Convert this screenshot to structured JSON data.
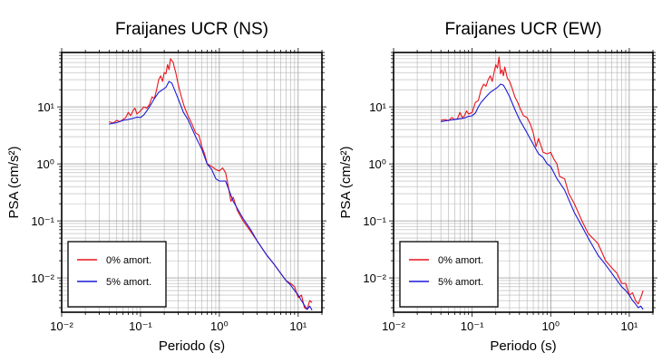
{
  "chart_data": [
    {
      "type": "line",
      "title": "Fraijanes UCR (NS)",
      "xlabel": "Periodo (s)",
      "ylabel": "PSA (cm/s²)",
      "xscale": "log",
      "yscale": "log",
      "xlim": [
        0.01,
        20
      ],
      "ylim": [
        0.0025,
        90
      ],
      "x_ticks": [
        "10⁻²",
        "10⁻¹",
        "10⁰",
        "10¹"
      ],
      "y_ticks": [
        "10⁻²",
        "10⁻¹",
        "10⁰",
        "10¹"
      ],
      "grid": true,
      "legend": "bottom-left",
      "series": [
        {
          "name": "0% amort.",
          "color": "#e8141c",
          "x": [
            0.04,
            0.045,
            0.05,
            0.055,
            0.06,
            0.065,
            0.07,
            0.075,
            0.08,
            0.085,
            0.09,
            0.1,
            0.11,
            0.12,
            0.13,
            0.14,
            0.15,
            0.16,
            0.17,
            0.18,
            0.19,
            0.2,
            0.21,
            0.22,
            0.23,
            0.24,
            0.25,
            0.26,
            0.27,
            0.28,
            0.3,
            0.33,
            0.36,
            0.4,
            0.45,
            0.5,
            0.55,
            0.6,
            0.65,
            0.7,
            0.8,
            0.9,
            1.0,
            1.1,
            1.2,
            1.3,
            1.4,
            1.5,
            1.7,
            2.0,
            2.5,
            3.0,
            4.0,
            5.0,
            6.0,
            7.0,
            8.0,
            9.0,
            10,
            11,
            12,
            13,
            14,
            15
          ],
          "y": [
            5.5,
            5.2,
            5.8,
            5.5,
            6.0,
            6.5,
            8.0,
            7.0,
            8.5,
            9.5,
            7.5,
            8.5,
            10,
            9.5,
            11,
            15,
            14,
            20,
            30,
            35,
            28,
            40,
            38,
            55,
            45,
            70,
            65,
            60,
            48,
            40,
            25,
            15,
            10,
            7,
            5,
            3.5,
            3.2,
            2.0,
            1.5,
            1.0,
            0.9,
            0.8,
            0.75,
            0.85,
            0.7,
            0.4,
            0.22,
            0.26,
            0.15,
            0.1,
            0.065,
            0.045,
            0.025,
            0.017,
            0.012,
            0.009,
            0.008,
            0.007,
            0.0045,
            0.005,
            0.003,
            0.0028,
            0.004,
            0.0037
          ]
        },
        {
          "name": "5% amort.",
          "color": "#1a1ad8",
          "x": [
            0.04,
            0.05,
            0.06,
            0.07,
            0.08,
            0.09,
            0.1,
            0.11,
            0.12,
            0.13,
            0.15,
            0.17,
            0.19,
            0.21,
            0.23,
            0.25,
            0.27,
            0.3,
            0.35,
            0.4,
            0.5,
            0.6,
            0.7,
            0.8,
            0.9,
            1.0,
            1.2,
            1.5,
            2.0,
            2.5,
            3.0,
            4.0,
            5.0,
            6.0,
            7.0,
            8.0,
            9.0,
            10,
            11,
            12,
            13,
            14,
            15
          ],
          "y": [
            5.0,
            5.3,
            5.8,
            6.0,
            6.3,
            6.6,
            6.5,
            7.2,
            8.5,
            10,
            14,
            18,
            20,
            22,
            28,
            26,
            20,
            14,
            8,
            6,
            3,
            1.8,
            1.0,
            0.8,
            0.55,
            0.5,
            0.5,
            0.22,
            0.11,
            0.07,
            0.045,
            0.025,
            0.017,
            0.012,
            0.009,
            0.0075,
            0.006,
            0.005,
            0.004,
            0.0033,
            0.0028,
            0.0032,
            0.0027
          ]
        }
      ]
    },
    {
      "type": "line",
      "title": "Fraijanes UCR (EW)",
      "xlabel": "Periodo (s)",
      "ylabel": "PSA (cm/s²)",
      "xscale": "log",
      "yscale": "log",
      "xlim": [
        0.01,
        20
      ],
      "ylim": [
        0.0025,
        90
      ],
      "x_ticks": [
        "10⁻²",
        "10⁻¹",
        "10⁰",
        "10¹"
      ],
      "y_ticks": [
        "10⁻²",
        "10⁻¹",
        "10⁰",
        "10¹"
      ],
      "grid": true,
      "legend": "bottom-left",
      "series": [
        {
          "name": "0% amort.",
          "color": "#e8141c",
          "x": [
            0.04,
            0.045,
            0.05,
            0.055,
            0.06,
            0.065,
            0.07,
            0.075,
            0.08,
            0.085,
            0.09,
            0.1,
            0.11,
            0.12,
            0.13,
            0.14,
            0.15,
            0.16,
            0.17,
            0.18,
            0.19,
            0.2,
            0.21,
            0.22,
            0.23,
            0.24,
            0.25,
            0.26,
            0.27,
            0.28,
            0.3,
            0.32,
            0.35,
            0.38,
            0.4,
            0.45,
            0.5,
            0.55,
            0.6,
            0.65,
            0.7,
            0.8,
            0.9,
            1.0,
            1.1,
            1.2,
            1.3,
            1.5,
            1.7,
            2.0,
            2.5,
            3.0,
            4.0,
            5.0,
            6.0,
            7.0,
            8.0,
            9.0,
            10,
            11,
            12,
            13,
            14,
            15
          ],
          "y": [
            5.8,
            6.0,
            5.7,
            6.5,
            6.0,
            6.2,
            8.0,
            6.5,
            7.0,
            8.5,
            7.5,
            8.0,
            12,
            13,
            20,
            25,
            23,
            30,
            35,
            28,
            40,
            55,
            48,
            75,
            38,
            45,
            35,
            50,
            40,
            32,
            28,
            22,
            15,
            12,
            10,
            7,
            6.5,
            5,
            3.5,
            2.0,
            2.8,
            1.6,
            1.5,
            1.6,
            1.2,
            1.0,
            0.6,
            0.55,
            0.3,
            0.2,
            0.1,
            0.06,
            0.04,
            0.02,
            0.015,
            0.012,
            0.008,
            0.008,
            0.005,
            0.0055,
            0.004,
            0.0035,
            0.0045,
            0.006
          ]
        },
        {
          "name": "5% amort.",
          "color": "#1a1ad8",
          "x": [
            0.04,
            0.05,
            0.06,
            0.07,
            0.08,
            0.09,
            0.1,
            0.11,
            0.12,
            0.13,
            0.15,
            0.17,
            0.19,
            0.21,
            0.23,
            0.25,
            0.27,
            0.3,
            0.35,
            0.4,
            0.5,
            0.6,
            0.7,
            0.8,
            0.9,
            1.0,
            1.2,
            1.5,
            2.0,
            2.5,
            3.0,
            4.0,
            5.0,
            6.0,
            7.0,
            8.0,
            9.0,
            10,
            11,
            12,
            13,
            14,
            15
          ],
          "y": [
            5.5,
            5.8,
            6.0,
            6.2,
            6.4,
            6.8,
            7.0,
            7.8,
            10,
            12,
            15,
            18,
            20,
            22,
            25,
            24,
            20,
            15,
            9,
            6,
            3.5,
            2.2,
            1.5,
            1.3,
            1.0,
            0.9,
            0.55,
            0.35,
            0.14,
            0.08,
            0.05,
            0.025,
            0.017,
            0.012,
            0.009,
            0.007,
            0.006,
            0.005,
            0.004,
            0.0035,
            0.003,
            0.0032,
            0.0028
          ]
        }
      ]
    }
  ]
}
